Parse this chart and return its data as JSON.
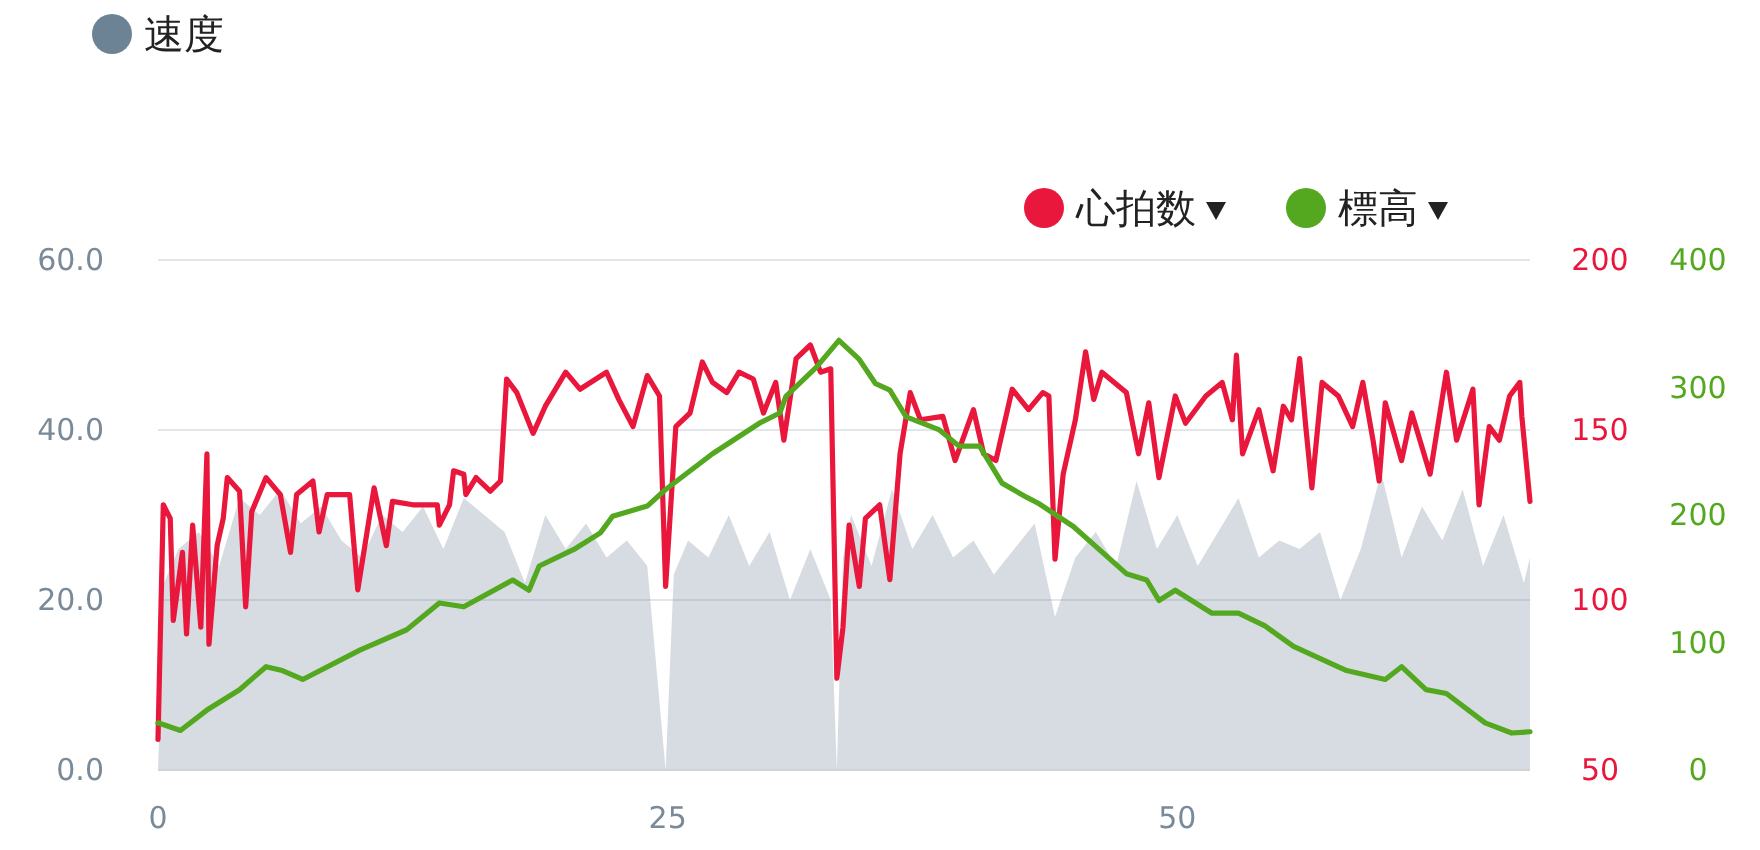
{
  "chart_data": {
    "type": "line",
    "xlim": [
      0,
      67.3
    ],
    "xticks": [
      0,
      25,
      50
    ],
    "ylim": [
      0,
      60
    ],
    "yticks": [
      {
        "value": 0,
        "label": "0.0"
      },
      {
        "value": 20,
        "label": "20.0"
      },
      {
        "value": 40,
        "label": "40.0"
      },
      {
        "value": 60,
        "label": "60.0"
      }
    ],
    "y2lim": [
      50,
      200
    ],
    "y2ticks": [
      50,
      100,
      150,
      200
    ],
    "y3lim": [
      0,
      400
    ],
    "y3ticks": [
      0,
      100,
      200,
      300,
      400
    ],
    "grid": "y",
    "legend": "top",
    "series": [
      {
        "name": "速度",
        "type": "area",
        "axis": "y",
        "color": "#6b8394",
        "x": [
          0,
          0.3,
          1,
          2,
          3,
          4,
          5,
          6,
          7,
          8,
          9,
          10,
          11,
          12,
          13,
          14,
          15,
          16,
          17,
          18,
          19,
          20,
          21,
          22,
          23,
          24,
          24.9,
          25.3,
          26,
          27,
          28,
          29,
          30,
          31,
          32,
          33,
          33.3,
          33.6,
          34,
          35,
          36,
          37,
          38,
          39,
          40,
          41,
          42,
          43,
          44,
          45,
          46,
          47,
          48,
          49,
          50,
          51,
          52,
          53,
          54,
          55,
          56,
          57,
          58,
          59,
          60,
          61,
          62,
          63,
          64,
          65,
          66,
          67,
          67.3
        ],
        "values": [
          0,
          22,
          26,
          28,
          24,
          32,
          30,
          33,
          29,
          31,
          27,
          25,
          30,
          28,
          31,
          26,
          32,
          30,
          28,
          22,
          30,
          26,
          29,
          25,
          27,
          24,
          0,
          23,
          27,
          25,
          30,
          24,
          28,
          20,
          26,
          20,
          0,
          25,
          30,
          24,
          33,
          26,
          30,
          25,
          27,
          23,
          26,
          29,
          18,
          25,
          28,
          24,
          34,
          26,
          30,
          24,
          28,
          32,
          25,
          27,
          26,
          28,
          20,
          26,
          35,
          25,
          31,
          27,
          33,
          24,
          30,
          22,
          25
        ]
      },
      {
        "name": "心拍数",
        "axis": "y2",
        "color": "#e8173b",
        "x": [
          0,
          0.26,
          0.6,
          0.75,
          1.2,
          1.4,
          1.7,
          2.1,
          2.4,
          2.5,
          2.9,
          3.2,
          3.4,
          4.0,
          4.3,
          4.6,
          5.3,
          6.0,
          6.5,
          6.8,
          7.6,
          7.9,
          8.3,
          9.4,
          9.8,
          10.6,
          11.2,
          11.5,
          12.5,
          13.7,
          13.8,
          14.3,
          14.5,
          15.0,
          15.1,
          15.6,
          16.3,
          16.8,
          17.1,
          17.6,
          18.4,
          19.0,
          20.0,
          20.7,
          22.0,
          22.6,
          23.3,
          24.0,
          24.6,
          24.9,
          25.4,
          26.1,
          26.7,
          27.2,
          27.9,
          28.5,
          29.2,
          29.7,
          30.3,
          30.7,
          31.3,
          32.0,
          32.5,
          33.0,
          33.3,
          33.6,
          33.9,
          34.4,
          34.7,
          35.4,
          35.9,
          36.4,
          36.9,
          37.4,
          38.5,
          39.1,
          40.0,
          40.5,
          41.1,
          41.9,
          42.7,
          43.4,
          43.7,
          44.0,
          44.4,
          45.0,
          45.5,
          45.9,
          46.3,
          47.5,
          48.1,
          48.6,
          49.1,
          49.9,
          50.4,
          51.4,
          52.2,
          52.7,
          52.9,
          53.2,
          54.0,
          54.7,
          55.2,
          55.6,
          56.0,
          56.3,
          56.6,
          57.1,
          57.9,
          58.6,
          59.1,
          59.6,
          59.9,
          60.2,
          61.0,
          61.5,
          62.4,
          63.2,
          63.7,
          64.5,
          64.8,
          65.3,
          65.8,
          66.3,
          66.8,
          66.9,
          67.3
        ],
        "values": [
          59,
          128,
          124,
          94,
          114,
          90,
          122,
          92,
          143,
          87,
          116,
          124,
          136,
          132,
          98,
          126,
          136,
          131,
          114,
          131,
          135,
          120,
          131,
          131,
          103,
          133,
          116,
          129,
          128,
          128,
          122,
          128,
          138,
          137,
          131,
          136,
          132,
          135,
          165,
          161,
          149,
          157,
          167,
          162,
          167,
          159,
          151,
          166,
          160,
          104,
          151,
          155,
          170,
          164,
          161,
          167,
          165,
          155,
          164,
          147,
          171,
          175,
          167,
          168,
          77,
          92,
          122,
          104,
          124,
          128,
          106,
          143,
          161,
          153,
          154,
          141,
          156,
          143,
          141,
          162,
          156,
          161,
          160,
          112,
          137,
          153,
          173,
          159,
          167,
          161,
          143,
          158,
          136,
          160,
          152,
          160,
          164,
          153,
          172,
          143,
          156,
          138,
          157,
          153,
          171,
          151,
          133,
          164,
          160,
          151,
          164,
          147,
          135,
          158,
          141,
          155,
          137,
          167,
          147,
          162,
          128,
          151,
          147,
          160,
          164,
          154,
          129
        ]
      },
      {
        "name": "標高",
        "axis": "y3",
        "color": "#53a81f",
        "x": [
          0,
          1.1,
          2.4,
          4.0,
          5.3,
          6.1,
          7.1,
          9.9,
          12.2,
          13.8,
          15.0,
          17.4,
          18.2,
          18.7,
          20.4,
          21.7,
          22.3,
          24.0,
          24.9,
          27.2,
          29.5,
          30.5,
          30.8,
          32.3,
          33.4,
          34.4,
          35.2,
          35.9,
          36.7,
          38.3,
          39.3,
          40.3,
          41.4,
          42.6,
          43.2,
          44.9,
          47.5,
          48.5,
          49.1,
          49.9,
          51.7,
          53.0,
          54.3,
          55.7,
          58.3,
          60.2,
          61.0,
          62.2,
          63.2,
          65.1,
          66.4,
          67.3
        ],
        "values": [
          37,
          31,
          47,
          63,
          81,
          78,
          71,
          94,
          110,
          131,
          128,
          149,
          141,
          160,
          173,
          186,
          199,
          207,
          220,
          248,
          272,
          280,
          293,
          316,
          337,
          322,
          303,
          298,
          277,
          267,
          254,
          254,
          225,
          214,
          209,
          191,
          154,
          149,
          133,
          141,
          123,
          123,
          113,
          97,
          78,
          71,
          81,
          63,
          60,
          37,
          29,
          30
        ]
      }
    ]
  }
}
